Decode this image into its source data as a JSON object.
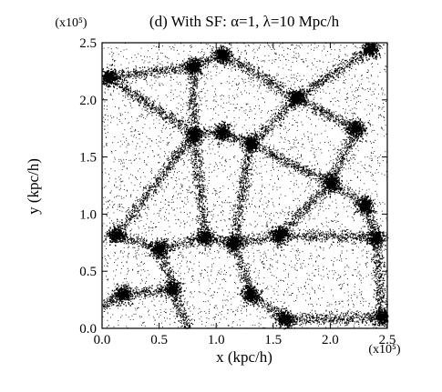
{
  "chart_data": {
    "type": "scatter",
    "title": "(d) With SF: α=1, λ=10 Mpc/h",
    "xlabel": "x (kpc/h)",
    "ylabel": "y (kpc/h)",
    "x_multiplier": "(x10⁵)",
    "y_multiplier": "(x10⁵)",
    "xlim": [
      0.0,
      2.5
    ],
    "ylim": [
      0.0,
      2.5
    ],
    "x_ticks": [
      "0.0",
      "0.5",
      "1.0",
      "1.5",
      "2.0",
      "2.5"
    ],
    "y_ticks": [
      "0.0",
      "0.5",
      "1.0",
      "1.5",
      "2.0",
      "2.5"
    ],
    "grid": false,
    "marker_color": "#000000",
    "background": "#ffffff",
    "halos": [
      {
        "x": 0.8,
        "y": 2.3
      },
      {
        "x": 1.05,
        "y": 2.4
      },
      {
        "x": 1.7,
        "y": 2.02
      },
      {
        "x": 2.35,
        "y": 2.45
      },
      {
        "x": 1.05,
        "y": 1.72
      },
      {
        "x": 2.22,
        "y": 1.75
      },
      {
        "x": 1.3,
        "y": 1.62
      },
      {
        "x": 0.8,
        "y": 1.7
      },
      {
        "x": 2.0,
        "y": 1.28
      },
      {
        "x": 2.3,
        "y": 1.08
      },
      {
        "x": 0.12,
        "y": 0.82
      },
      {
        "x": 0.5,
        "y": 0.7
      },
      {
        "x": 1.15,
        "y": 0.75
      },
      {
        "x": 0.9,
        "y": 0.8
      },
      {
        "x": 1.55,
        "y": 0.82
      },
      {
        "x": 2.4,
        "y": 0.8
      },
      {
        "x": 0.62,
        "y": 0.35
      },
      {
        "x": 0.18,
        "y": 0.3
      },
      {
        "x": 1.3,
        "y": 0.3
      },
      {
        "x": 1.6,
        "y": 0.08
      },
      {
        "x": 2.45,
        "y": 0.1
      },
      {
        "x": 0.05,
        "y": 2.2
      }
    ],
    "filaments": [
      [
        0.8,
        2.3,
        1.05,
        2.4
      ],
      [
        0.8,
        2.3,
        0.8,
        1.7
      ],
      [
        1.05,
        2.4,
        1.7,
        2.02
      ],
      [
        1.7,
        2.02,
        2.35,
        2.45
      ],
      [
        1.7,
        2.02,
        2.22,
        1.75
      ],
      [
        1.7,
        2.02,
        1.3,
        1.62
      ],
      [
        1.05,
        1.72,
        1.3,
        1.62
      ],
      [
        0.8,
        1.7,
        1.05,
        1.72
      ],
      [
        0.05,
        2.2,
        0.8,
        2.3
      ],
      [
        0.05,
        2.2,
        0.8,
        1.7
      ],
      [
        2.22,
        1.75,
        2.0,
        1.28
      ],
      [
        2.0,
        1.28,
        2.3,
        1.08
      ],
      [
        1.3,
        1.62,
        2.0,
        1.28
      ],
      [
        1.3,
        1.62,
        1.15,
        0.75
      ],
      [
        0.8,
        1.7,
        0.12,
        0.82
      ],
      [
        0.8,
        1.7,
        0.9,
        0.8
      ],
      [
        0.12,
        0.82,
        0.5,
        0.7
      ],
      [
        0.5,
        0.7,
        0.9,
        0.8
      ],
      [
        0.9,
        0.8,
        1.15,
        0.75
      ],
      [
        1.15,
        0.75,
        1.55,
        0.82
      ],
      [
        1.55,
        0.82,
        2.0,
        1.28
      ],
      [
        2.3,
        1.08,
        2.4,
        0.8
      ],
      [
        1.55,
        0.82,
        2.4,
        0.8
      ],
      [
        0.5,
        0.7,
        0.62,
        0.35
      ],
      [
        0.62,
        0.35,
        0.18,
        0.3
      ],
      [
        0.62,
        0.35,
        0.75,
        0.0
      ],
      [
        1.15,
        0.75,
        1.3,
        0.3
      ],
      [
        1.3,
        0.3,
        1.6,
        0.08
      ],
      [
        1.6,
        0.08,
        2.45,
        0.1
      ],
      [
        2.4,
        0.8,
        2.45,
        0.1
      ],
      [
        0.18,
        0.3,
        0.0,
        0.2
      ]
    ]
  }
}
